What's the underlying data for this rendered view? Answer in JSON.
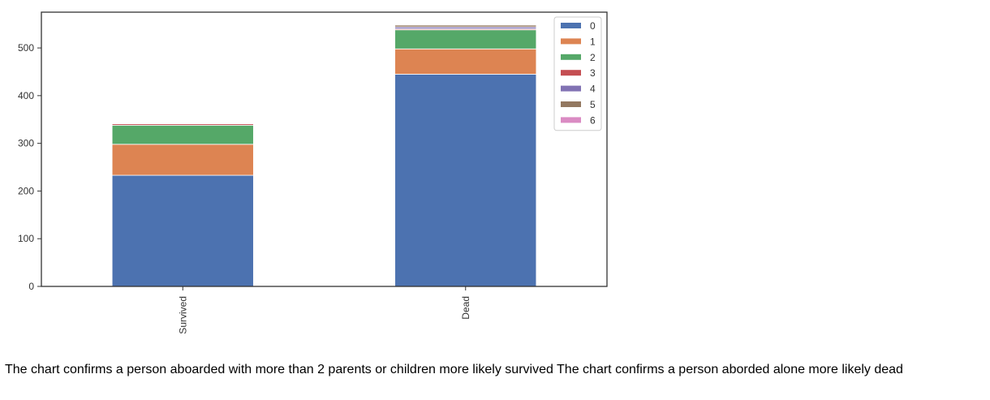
{
  "chart_data": {
    "type": "bar",
    "stacked": true,
    "categories": [
      "Survived",
      "Dead"
    ],
    "series": [
      {
        "name": "0",
        "values": [
          233,
          445
        ],
        "color": "#4c72b0"
      },
      {
        "name": "1",
        "values": [
          65,
          53
        ],
        "color": "#dd8452"
      },
      {
        "name": "2",
        "values": [
          40,
          40
        ],
        "color": "#55a868"
      },
      {
        "name": "3",
        "values": [
          3,
          2
        ],
        "color": "#c44e52"
      },
      {
        "name": "4",
        "values": [
          0,
          4
        ],
        "color": "#8172b3"
      },
      {
        "name": "5",
        "values": [
          1,
          4
        ],
        "color": "#937860"
      },
      {
        "name": "6",
        "values": [
          0,
          1
        ],
        "color": "#da8bc3"
      }
    ],
    "yticks": [
      0,
      100,
      200,
      300,
      400,
      500
    ],
    "ylim": [
      0,
      575
    ],
    "xlabel": "",
    "ylabel": "",
    "grid": false,
    "legend_position": "top-right",
    "xtick_rotation": "vertical"
  },
  "caption": "The chart confirms a person aboarded with more than 2 parents or children more likely survived The chart confirms a person aborded alone more likely dead"
}
